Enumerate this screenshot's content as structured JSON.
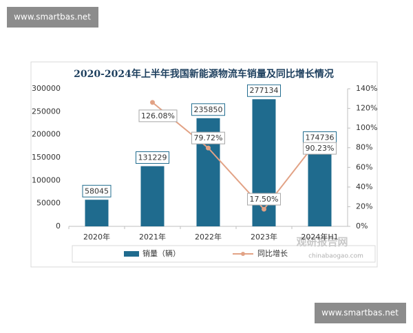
{
  "chart_data": {
    "type": "bar-line",
    "title": "2020-2024年上半年我国新能源物流车销量及同比增长情况",
    "categories": [
      "2020年",
      "2021年",
      "2022年",
      "2023年",
      "2024年H1"
    ],
    "series": [
      {
        "name": "销量（辆）",
        "type": "bar",
        "color": "#1f6b8e",
        "values": [
          58045,
          131229,
          235850,
          277134,
          174736
        ]
      },
      {
        "name": "同比增长",
        "type": "line",
        "axis": "y2",
        "color": "#e2a285",
        "values": [
          null,
          126.08,
          79.72,
          17.5,
          90.23
        ],
        "value_labels": [
          null,
          "126.08%",
          "79.72%",
          "17.50%",
          "90.23%"
        ]
      }
    ],
    "ylim": [
      0,
      300000
    ],
    "yticks": [
      0,
      50000,
      100000,
      150000,
      200000,
      250000,
      300000
    ],
    "y2lim": [
      0,
      140
    ],
    "y2ticks": [
      {
        "value": 0,
        "label": "0%"
      },
      {
        "value": 20,
        "label": "20%"
      },
      {
        "value": 40,
        "label": "40%"
      },
      {
        "value": 60,
        "label": "60%"
      },
      {
        "value": 80,
        "label": "80%"
      },
      {
        "value": 100,
        "label": "100%"
      },
      {
        "value": 120,
        "label": "120%"
      },
      {
        "value": 140,
        "label": "140%"
      }
    ],
    "legend": "bottom"
  },
  "watermarks": [
    "www.smartbas.net",
    "www.smartbas.net"
  ],
  "logo": {
    "name": "观研报告网",
    "url": "chinabaogao.com"
  }
}
